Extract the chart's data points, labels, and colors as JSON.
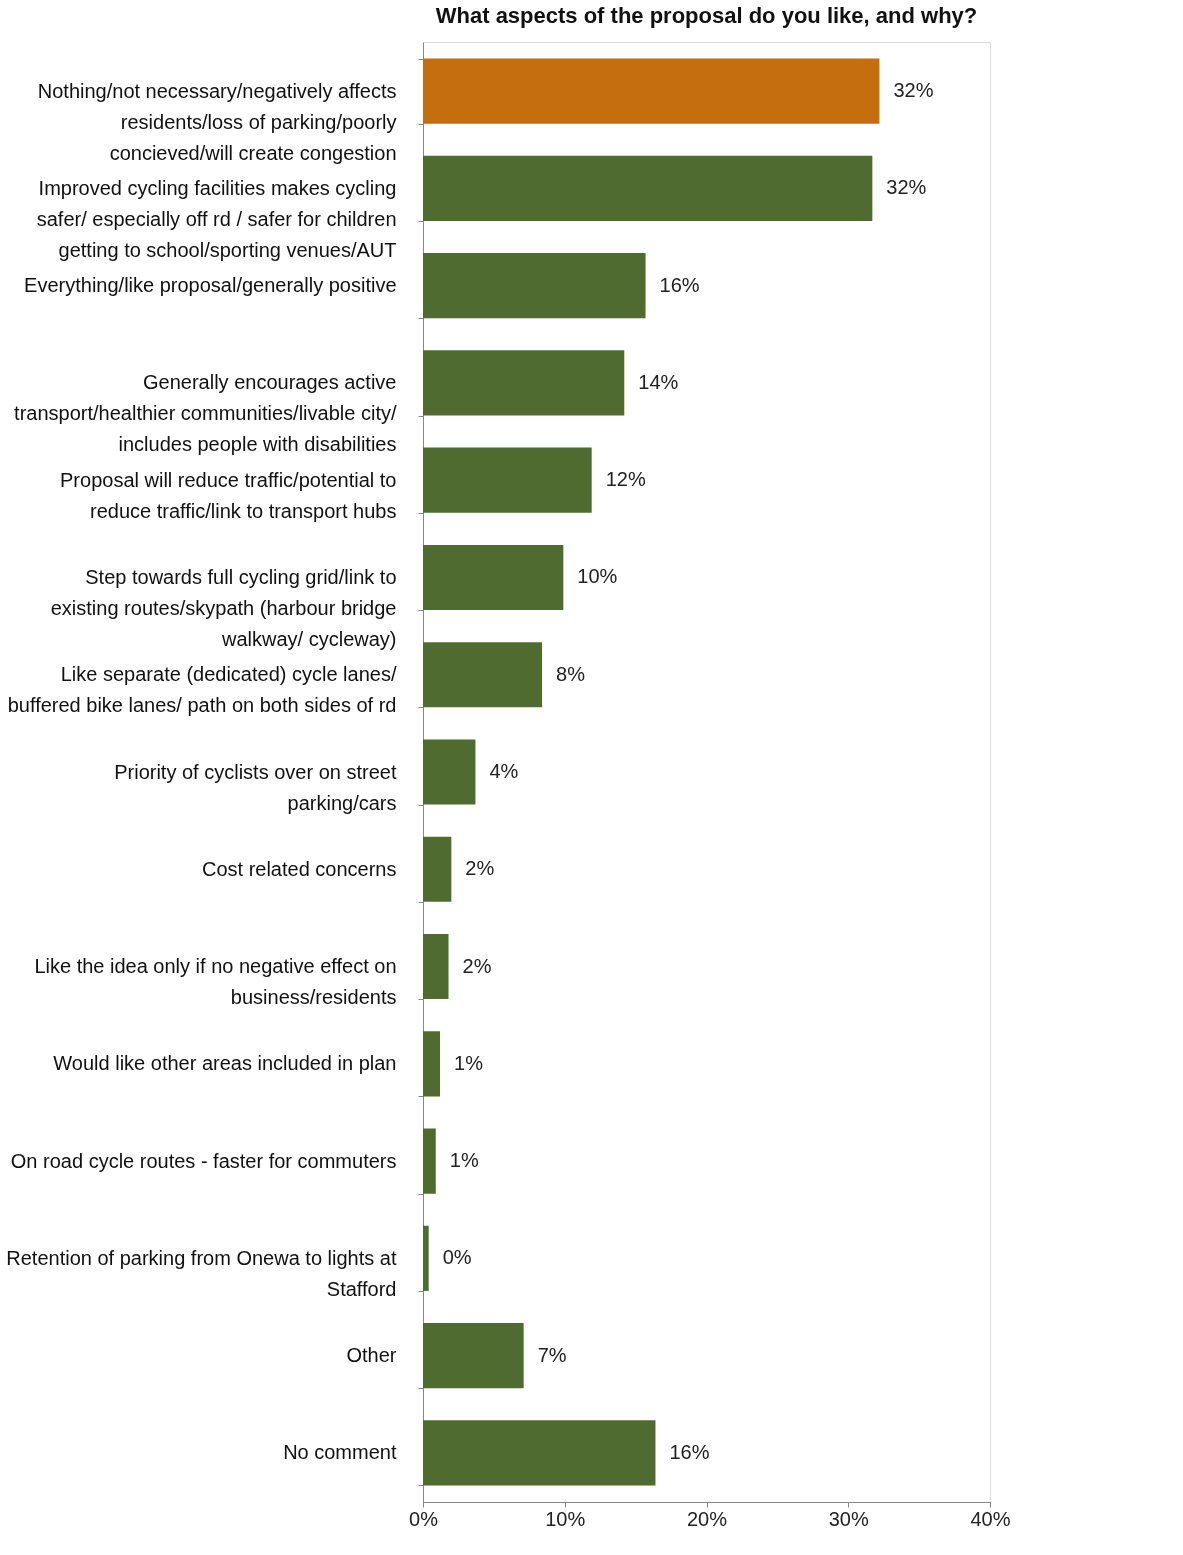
{
  "chart_data": {
    "type": "bar",
    "orientation": "horizontal",
    "title": "What aspects of the proposal do you like, and why?",
    "categories": [
      "Nothing/not necessary/negatively affects residents/loss of parking/poorly concieved/will create congestion",
      "Improved cycling facilities makes cycling safer/ especially off rd / safer for children getting to school/sporting venues/AUT",
      "Everything/like proposal/generally positive",
      "Generally encourages active transport/healthier communities/livable city/ includes people with disabilities",
      "Proposal will reduce traffic/potential to reduce traffic/link to transport hubs",
      "Step towards full cycling grid/link to existing routes/skypath (harbour bridge walkway/ cycleway)",
      "Like separate (dedicated) cycle lanes/ buffered bike lanes/ path on both sides of rd",
      "Priority of cyclists over on street parking/cars",
      "Cost related concerns",
      "Like the idea only if no negative effect on business/residents",
      "Would like other areas included in plan",
      "On road cycle routes - faster for commuters",
      "Retention of parking from Onewa to lights at Stafford",
      "Other",
      "No comment"
    ],
    "values": [
      32.2,
      31.7,
      15.7,
      14.2,
      11.9,
      9.9,
      8.4,
      3.7,
      2.0,
      1.8,
      1.2,
      0.9,
      0.4,
      7.1,
      16.4
    ],
    "colors": [
      "#c46e0d",
      "#4f6b2f",
      "#4f6b2f",
      "#4f6b2f",
      "#4f6b2f",
      "#4f6b2f",
      "#4f6b2f",
      "#4f6b2f",
      "#4f6b2f",
      "#4f6b2f",
      "#4f6b2f",
      "#4f6b2f",
      "#4f6b2f",
      "#4f6b2f",
      "#4f6b2f"
    ],
    "value_labels": [
      "32%",
      "32%",
      "16%",
      "14%",
      "12%",
      "10%",
      "8%",
      "4%",
      "2%",
      "2%",
      "1%",
      "1%",
      "0%",
      "7%",
      "16%"
    ],
    "xlim": [
      0,
      40
    ],
    "xticks": [
      {
        "value": 0,
        "label": "0%"
      },
      {
        "value": 10,
        "label": "10%"
      },
      {
        "value": 20,
        "label": "20%"
      },
      {
        "value": 30,
        "label": "30%"
      },
      {
        "value": 40,
        "label": "40%"
      }
    ],
    "grid": false
  }
}
